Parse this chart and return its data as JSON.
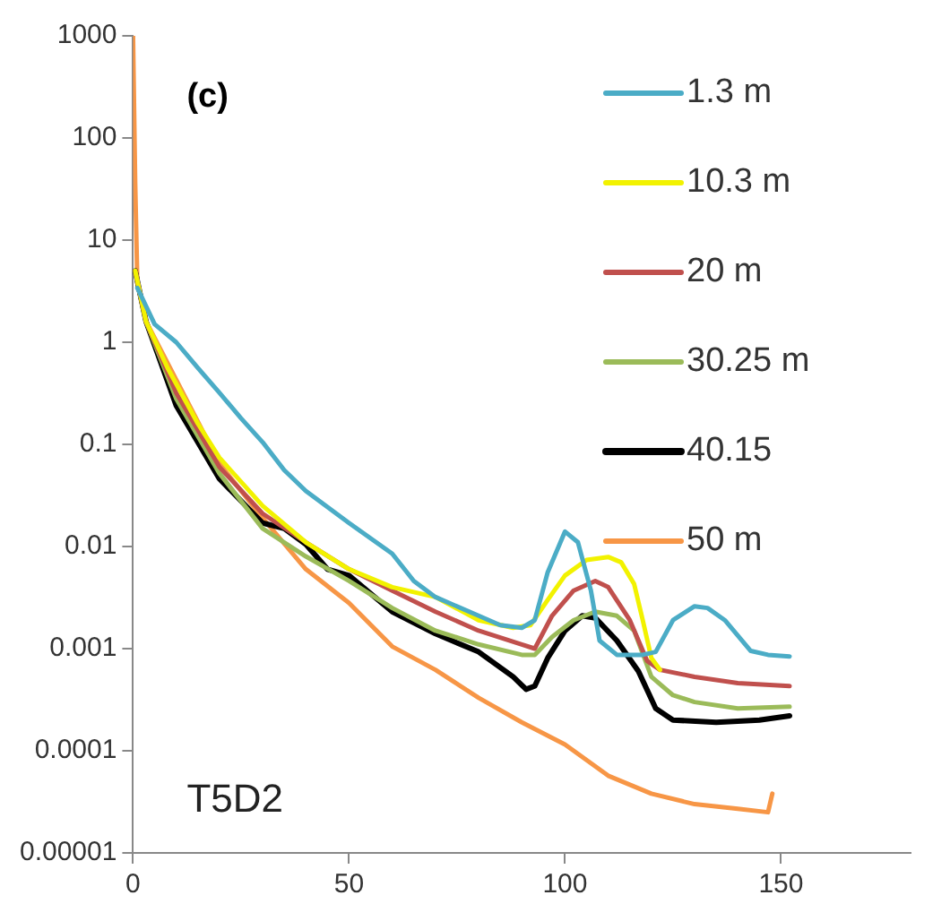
{
  "chart_data": {
    "type": "line",
    "annotations": [
      "(c)",
      "T5D2"
    ],
    "legend": "top right",
    "grid": false,
    "log": "y",
    "xlim": [
      0,
      180
    ],
    "xticks": [
      0,
      50,
      100,
      150
    ],
    "ylim": [
      1e-05,
      1000
    ],
    "yticks": [
      1000,
      100,
      10,
      1,
      0.1,
      0.01,
      0.001,
      0.0001,
      {
        "value": 1e-05,
        "label": "0.00001"
      }
    ],
    "marker": "none",
    "line_style": "solid",
    "series": [
      {
        "name": "1.3 m",
        "color": "#4bacc6",
        "x": [
          1,
          5,
          10,
          15,
          20,
          25,
          30,
          35,
          40,
          50,
          60,
          65,
          70,
          80,
          85,
          90,
          93,
          96,
          100,
          103,
          106,
          108,
          112,
          118,
          121,
          125,
          130,
          133,
          137,
          143,
          147,
          152
        ],
        "values": [
          3.4,
          1.5,
          1.0,
          0.56,
          0.32,
          0.18,
          0.105,
          0.056,
          0.035,
          0.017,
          0.0085,
          0.0046,
          0.0032,
          0.0021,
          0.0017,
          0.0016,
          0.0019,
          0.0056,
          0.014,
          0.011,
          0.0037,
          0.0012,
          0.00087,
          0.00087,
          0.00093,
          0.0019,
          0.0026,
          0.0025,
          0.0019,
          0.00095,
          0.00087,
          0.00084
        ]
      },
      {
        "name": "10.3 m",
        "color": "#f2f200",
        "x": [
          0.5,
          3,
          8,
          15,
          20,
          30,
          40,
          50,
          60,
          70,
          80,
          88,
          92,
          96,
          100,
          105,
          110,
          113,
          116,
          118,
          120,
          122
        ],
        "values": [
          5,
          1.6,
          0.56,
          0.16,
          0.074,
          0.025,
          0.011,
          0.006,
          0.004,
          0.0032,
          0.0019,
          0.0016,
          0.0017,
          0.003,
          0.0052,
          0.0074,
          0.0079,
          0.007,
          0.0043,
          0.0019,
          0.00081,
          0.00062
        ]
      },
      {
        "name": "20 m",
        "color": "#c0504d",
        "x": [
          0.5,
          3,
          10,
          20,
          30,
          40,
          50,
          60,
          70,
          80,
          90,
          93,
          97,
          102,
          107,
          110,
          115,
          119,
          122,
          130,
          140,
          152
        ],
        "values": [
          5,
          1.6,
          0.32,
          0.06,
          0.021,
          0.011,
          0.006,
          0.0037,
          0.0023,
          0.0015,
          0.0011,
          0.001,
          0.0021,
          0.0037,
          0.0046,
          0.004,
          0.0019,
          0.00076,
          0.00062,
          0.00053,
          0.00046,
          0.00043
        ]
      },
      {
        "name": "30.25 m",
        "color": "#9bbb59",
        "x": [
          0.5,
          3,
          10,
          20,
          30,
          40,
          50,
          60,
          70,
          80,
          90,
          93,
          97,
          102,
          107,
          112,
          116,
          120,
          125,
          130,
          140,
          152
        ],
        "values": [
          5,
          1.6,
          0.28,
          0.052,
          0.015,
          0.008,
          0.0046,
          0.0025,
          0.0015,
          0.0011,
          0.00087,
          0.00087,
          0.0013,
          0.0019,
          0.0023,
          0.0021,
          0.0015,
          0.00053,
          0.00035,
          0.0003,
          0.00026,
          0.00027
        ]
      },
      {
        "name": "40.15",
        "color": "#000000",
        "x": [
          0.5,
          3,
          10,
          20,
          30,
          35,
          40,
          45,
          50,
          60,
          70,
          80,
          88,
          91,
          93,
          96,
          100,
          104,
          107,
          112,
          117,
          121,
          125,
          135,
          145,
          152
        ],
        "values": [
          5,
          1.6,
          0.24,
          0.046,
          0.017,
          0.015,
          0.0105,
          0.006,
          0.0052,
          0.0023,
          0.0014,
          0.00093,
          0.00053,
          0.0004,
          0.00043,
          0.00081,
          0.0015,
          0.0021,
          0.002,
          0.0012,
          0.0006,
          0.00026,
          0.0002,
          0.00019,
          0.0002,
          0.00022
        ]
      },
      {
        "name": "50 m",
        "color": "#f79646",
        "x": [
          0,
          0.5,
          1,
          3,
          10,
          20,
          30,
          40,
          50,
          60,
          70,
          80,
          90,
          100,
          110,
          120,
          130,
          140,
          147,
          148
        ],
        "values": [
          1000,
          36,
          3.8,
          1.6,
          0.43,
          0.065,
          0.019,
          0.006,
          0.0028,
          0.00105,
          0.00062,
          0.00033,
          0.00019,
          0.000115,
          5.7e-05,
          3.8e-05,
          3e-05,
          2.7e-05,
          2.5e-05,
          3.8e-05
        ]
      }
    ]
  }
}
